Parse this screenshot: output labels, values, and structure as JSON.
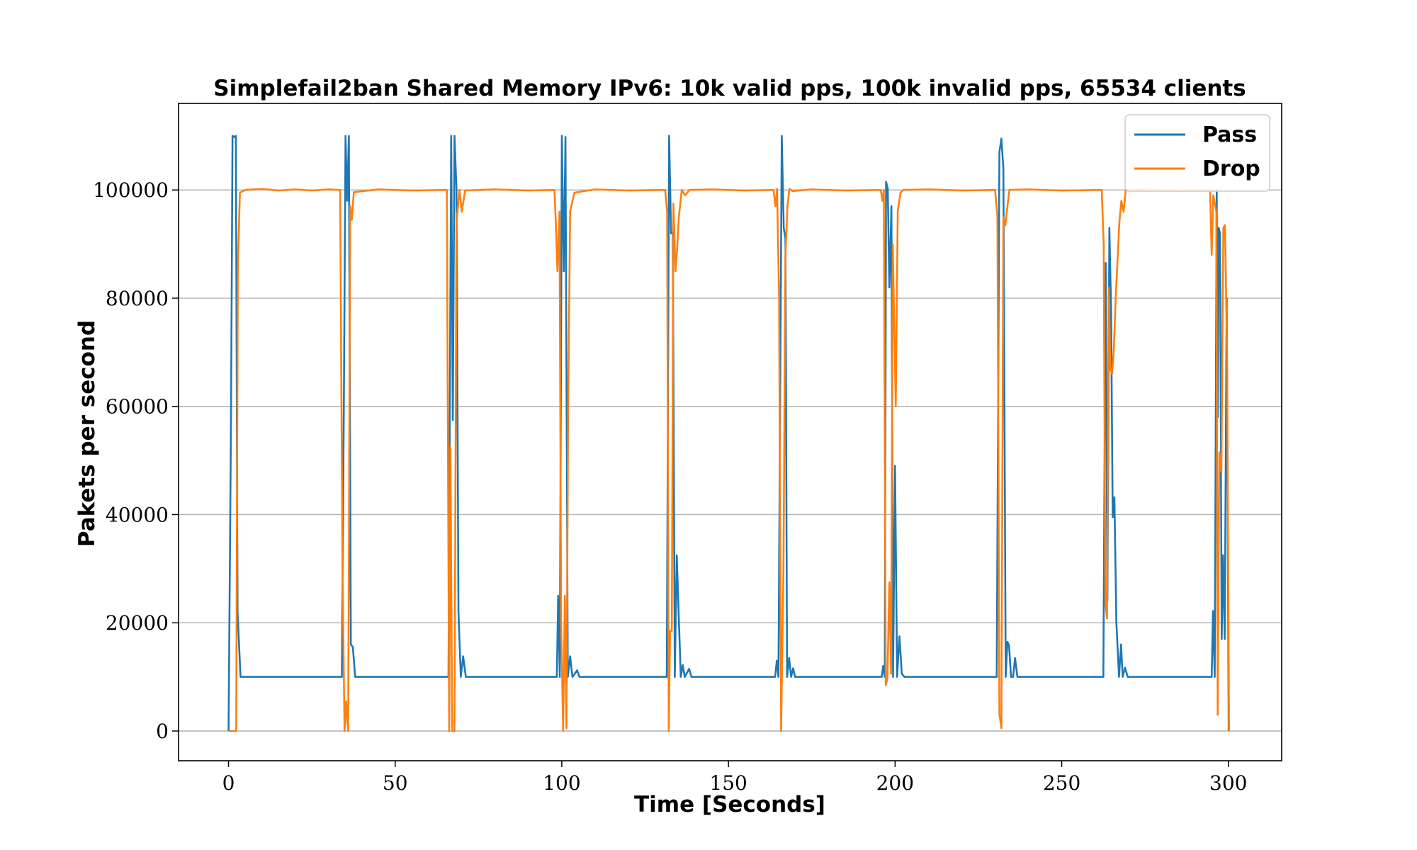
{
  "chart_data": {
    "type": "line",
    "title": "Simplefail2ban Shared Memory IPv6:  10k valid pps,  100k invalid pps,  65534 clients",
    "xlabel": "Time [Seconds]",
    "ylabel": "Pakets per second",
    "xlim": [
      -15,
      316
    ],
    "ylim": [
      -5500,
      116000
    ],
    "xticks": [
      0,
      50,
      100,
      150,
      200,
      250,
      300
    ],
    "yticks": [
      0,
      20000,
      40000,
      60000,
      80000,
      100000
    ],
    "grid": "horizontal",
    "legend_position": "top-right",
    "series": [
      {
        "name": "Pass",
        "color": "#1f77b4",
        "points": [
          [
            0,
            0
          ],
          [
            0.7,
            55000
          ],
          [
            1.2,
            110000
          ],
          [
            1.7,
            109800
          ],
          [
            2.2,
            110000
          ],
          [
            2.7,
            22000
          ],
          [
            3.6,
            10000
          ],
          [
            34,
            10000
          ],
          [
            34.6,
            60000
          ],
          [
            35.1,
            110000
          ],
          [
            35.6,
            98000
          ],
          [
            36.1,
            110000
          ],
          [
            36.7,
            16000
          ],
          [
            37.3,
            15500
          ],
          [
            38,
            10000
          ],
          [
            66,
            10000
          ],
          [
            66.8,
            110000
          ],
          [
            67.3,
            57500
          ],
          [
            67.8,
            110000
          ],
          [
            68.4,
            100000
          ],
          [
            69,
            22000
          ],
          [
            69.7,
            10000
          ],
          [
            70.4,
            13800
          ],
          [
            71.2,
            10000
          ],
          [
            98.5,
            10000
          ],
          [
            98.9,
            25000
          ],
          [
            99.4,
            10000
          ],
          [
            100,
            110000
          ],
          [
            100.6,
            85000
          ],
          [
            101.1,
            109800
          ],
          [
            101.8,
            10000
          ],
          [
            102.5,
            13800
          ],
          [
            103.2,
            10000
          ],
          [
            104.6,
            11200
          ],
          [
            105.3,
            10000
          ],
          [
            131.5,
            10000
          ],
          [
            132.2,
            110000
          ],
          [
            132.8,
            92000
          ],
          [
            133.3,
            92200
          ],
          [
            133.9,
            10000
          ],
          [
            134.5,
            32500
          ],
          [
            135.1,
            20800
          ],
          [
            135.7,
            10000
          ],
          [
            136.3,
            12200
          ],
          [
            136.9,
            10000
          ],
          [
            138.2,
            11500
          ],
          [
            138.9,
            10000
          ],
          [
            164,
            10000
          ],
          [
            164.5,
            13000
          ],
          [
            165,
            10000
          ],
          [
            166,
            110000
          ],
          [
            166.6,
            93000
          ],
          [
            167.1,
            91000
          ],
          [
            167.6,
            10000
          ],
          [
            168.2,
            13500
          ],
          [
            168.8,
            10000
          ],
          [
            169.4,
            11600
          ],
          [
            170,
            10000
          ],
          [
            196,
            10000
          ],
          [
            196.4,
            12000
          ],
          [
            196.9,
            10000
          ],
          [
            197.3,
            101500
          ],
          [
            197.8,
            100300
          ],
          [
            198.3,
            82000
          ],
          [
            198.9,
            97000
          ],
          [
            199.4,
            10000
          ],
          [
            200,
            49000
          ],
          [
            200.6,
            10000
          ],
          [
            201.3,
            17500
          ],
          [
            202,
            10600
          ],
          [
            202.8,
            10000
          ],
          [
            230.5,
            10000
          ],
          [
            231.3,
            107000
          ],
          [
            231.9,
            109500
          ],
          [
            232.5,
            104000
          ],
          [
            233.2,
            10000
          ],
          [
            233.7,
            16500
          ],
          [
            234.2,
            15800
          ],
          [
            234.8,
            10000
          ],
          [
            235.4,
            10000
          ],
          [
            236,
            13500
          ],
          [
            236.7,
            10000
          ],
          [
            262.5,
            10000
          ],
          [
            263.2,
            86500
          ],
          [
            263.7,
            24000
          ],
          [
            264.3,
            93000
          ],
          [
            264.8,
            78000
          ],
          [
            265.3,
            39500
          ],
          [
            265.8,
            43200
          ],
          [
            266.4,
            20000
          ],
          [
            267.2,
            10000
          ],
          [
            267.8,
            16000
          ],
          [
            268.3,
            10000
          ],
          [
            269,
            11700
          ],
          [
            269.8,
            10000
          ],
          [
            271,
            10000
          ],
          [
            295,
            10000
          ],
          [
            295.4,
            22200
          ],
          [
            295.9,
            10000
          ],
          [
            296.5,
            100000
          ],
          [
            296.8,
            58000
          ],
          [
            297.1,
            93000
          ],
          [
            297.5,
            92000
          ],
          [
            298,
            17000
          ],
          [
            298.4,
            32500
          ],
          [
            298.9,
            17000
          ],
          [
            299.5,
            80000
          ],
          [
            300.1,
            0
          ]
        ]
      },
      {
        "name": "Drop",
        "color": "#ff7f0e",
        "points": [
          [
            0,
            0
          ],
          [
            1.4,
            0
          ],
          [
            2.3,
            0
          ],
          [
            2.8,
            86000
          ],
          [
            3.4,
            99500
          ],
          [
            5,
            100000
          ],
          [
            10,
            100200
          ],
          [
            15,
            99900
          ],
          [
            20,
            100100
          ],
          [
            25,
            99900
          ],
          [
            30,
            100100
          ],
          [
            33.5,
            100000
          ],
          [
            34.2,
            30000
          ],
          [
            34.8,
            0
          ],
          [
            35.3,
            5500
          ],
          [
            35.9,
            0
          ],
          [
            36.5,
            97000
          ],
          [
            37,
            94500
          ],
          [
            37.6,
            99600
          ],
          [
            45,
            100100
          ],
          [
            55,
            99900
          ],
          [
            65.5,
            100000
          ],
          [
            66.2,
            0
          ],
          [
            66.6,
            52500
          ],
          [
            67.1,
            0
          ],
          [
            67.8,
            0
          ],
          [
            68.4,
            94000
          ],
          [
            69.3,
            100000
          ],
          [
            70,
            96000
          ],
          [
            71,
            99900
          ],
          [
            80,
            100100
          ],
          [
            90,
            99900
          ],
          [
            97.8,
            100000
          ],
          [
            98.2,
            94000
          ],
          [
            98.7,
            85000
          ],
          [
            99.3,
            96000
          ],
          [
            99.8,
            20000
          ],
          [
            100.4,
            0
          ],
          [
            100.9,
            25000
          ],
          [
            101.4,
            500
          ],
          [
            101.9,
            60000
          ],
          [
            102.5,
            96000
          ],
          [
            103.2,
            98000
          ],
          [
            103.8,
            99500
          ],
          [
            110,
            100100
          ],
          [
            120,
            99900
          ],
          [
            131,
            100000
          ],
          [
            131.6,
            96000
          ],
          [
            132.1,
            0
          ],
          [
            132.5,
            18500
          ],
          [
            133,
            18500
          ],
          [
            133.5,
            97500
          ],
          [
            134.1,
            85000
          ],
          [
            134.6,
            89000
          ],
          [
            135.1,
            95000
          ],
          [
            136,
            100000
          ],
          [
            137,
            99000
          ],
          [
            138.3,
            100000
          ],
          [
            145,
            100100
          ],
          [
            155,
            99900
          ],
          [
            163.5,
            100000
          ],
          [
            164.1,
            97000
          ],
          [
            164.6,
            100200
          ],
          [
            165.2,
            80000
          ],
          [
            165.8,
            0
          ],
          [
            166.5,
            30000
          ],
          [
            167.1,
            88000
          ],
          [
            167.7,
            97000
          ],
          [
            168.3,
            100200
          ],
          [
            169.2,
            99800
          ],
          [
            175,
            100100
          ],
          [
            185,
            99900
          ],
          [
            195.7,
            100000
          ],
          [
            196.2,
            98000
          ],
          [
            196.6,
            100000
          ],
          [
            197.2,
            8500
          ],
          [
            197.7,
            9600
          ],
          [
            198.3,
            27500
          ],
          [
            198.8,
            10600
          ],
          [
            199.3,
            90000
          ],
          [
            200.2,
            60000
          ],
          [
            200.8,
            96000
          ],
          [
            201.6,
            99500
          ],
          [
            202.5,
            100000
          ],
          [
            210,
            100100
          ],
          [
            220,
            99900
          ],
          [
            230,
            100000
          ],
          [
            230.7,
            95000
          ],
          [
            231.3,
            3200
          ],
          [
            231.9,
            500
          ],
          [
            232.5,
            95000
          ],
          [
            233.1,
            93500
          ],
          [
            233.7,
            97000
          ],
          [
            234.3,
            100000
          ],
          [
            240,
            100100
          ],
          [
            250,
            99900
          ],
          [
            262,
            100000
          ],
          [
            262.6,
            90000
          ],
          [
            263.1,
            23500
          ],
          [
            263.6,
            20800
          ],
          [
            264.1,
            82000
          ],
          [
            264.6,
            67000
          ],
          [
            265.1,
            66000
          ],
          [
            265.6,
            70000
          ],
          [
            266.2,
            80000
          ],
          [
            267.3,
            94000
          ],
          [
            267.9,
            98000
          ],
          [
            268.6,
            96000
          ],
          [
            269.2,
            100000
          ],
          [
            275,
            100100
          ],
          [
            285,
            99900
          ],
          [
            294.5,
            100000
          ],
          [
            295,
            88000
          ],
          [
            295.5,
            99000
          ],
          [
            296.4,
            96000
          ],
          [
            296.8,
            3000
          ],
          [
            297.3,
            51500
          ],
          [
            297.9,
            48000
          ],
          [
            298.5,
            93000
          ],
          [
            299,
            93500
          ],
          [
            299.6,
            70000
          ],
          [
            300.2,
            0
          ]
        ]
      }
    ]
  }
}
